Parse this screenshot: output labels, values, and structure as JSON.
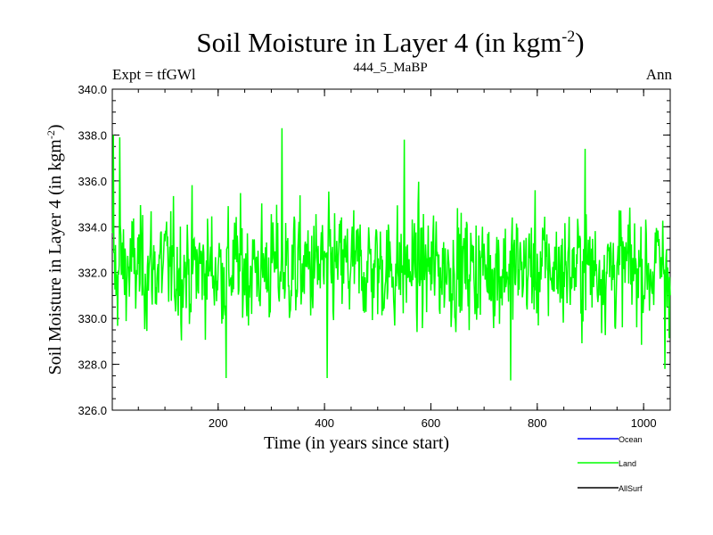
{
  "chart_data": {
    "type": "line",
    "title": "Soil Moisture in Layer 4 (in kgm",
    "title_sup": "-2",
    "title_close": ")",
    "subtitle_left": "Expt = tfGWl",
    "subtitle_center": "444_5_MaBP",
    "subtitle_right": "Ann",
    "xlabel": "Time (in years since start)",
    "ylabel": "Soil Moisture in Layer 4 (in kgm",
    "ylabel_sup": "-2",
    "ylabel_close": ")",
    "xlim": [
      1,
      1050
    ],
    "ylim": [
      326.0,
      340.0
    ],
    "x_ticks": [
      200,
      400,
      600,
      800,
      1000
    ],
    "y_ticks": [
      "326.0",
      "328.0",
      "330.0",
      "332.0",
      "334.0",
      "336.0",
      "338.0",
      "340.0"
    ],
    "series": [
      {
        "name": "Ocean",
        "color": "#0000ff",
        "values": []
      },
      {
        "name": "Land",
        "color": "#00ff00",
        "n_points": 1050,
        "mean": 332.2,
        "std": 1.6,
        "min": 327.3,
        "max": 338.3,
        "notable_points": [
          [
            3,
            338.0
          ],
          [
            8,
            331.0
          ],
          [
            15,
            337.9
          ],
          [
            215,
            327.4
          ],
          [
            320,
            338.3
          ],
          [
            405,
            327.4
          ],
          [
            550,
            337.8
          ],
          [
            750,
            327.3
          ],
          [
            890,
            337.4
          ],
          [
            1040,
            327.8
          ]
        ]
      },
      {
        "name": "AllSurf",
        "color": "#000000",
        "values": []
      }
    ],
    "legend": [
      "Ocean",
      "Land",
      "AllSurf"
    ]
  }
}
